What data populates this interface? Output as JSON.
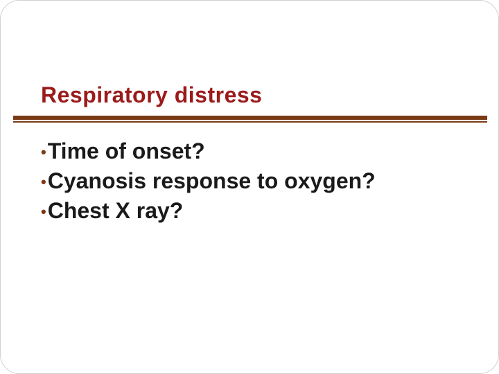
{
  "slide": {
    "title": "Respiratory distress",
    "title_color": "#9a1b1b",
    "rule_color_thick": "#7a3a16",
    "rule_color_thin": "#7a3a16",
    "body_color": "#1a1a1a",
    "bullet_color": "#7a3a16",
    "bullets": [
      {
        "text": "Time of onset?"
      },
      {
        "text": "Cyanosis response to oxygen?"
      },
      {
        "text": "Chest X ray?"
      }
    ],
    "background_color": "#ffffff",
    "title_fontsize": 32,
    "body_fontsize": 32,
    "corner_radius": 28
  }
}
